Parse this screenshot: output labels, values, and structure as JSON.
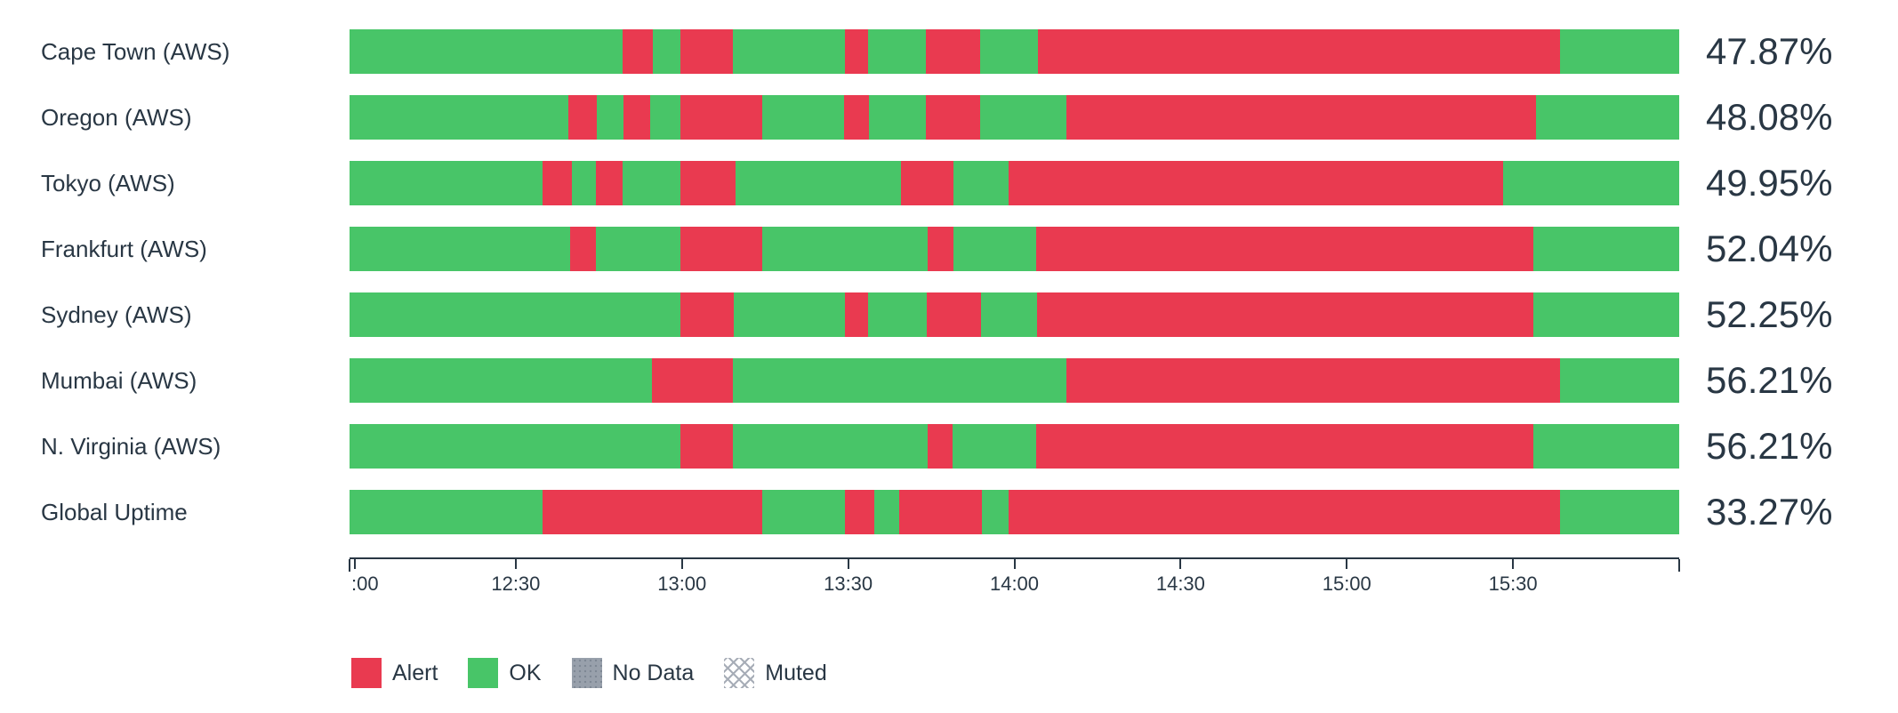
{
  "colors": {
    "alert": "#e93a50",
    "ok": "#48c568",
    "no_data": "#98a0ab",
    "no_data_dot": "#7e8894",
    "muted_line": "#a7adb7",
    "text": "#293744",
    "axis": "#293744"
  },
  "chart_data": {
    "type": "bar",
    "subtype": "status-timeline-uptime",
    "orientation": "horizontal",
    "time_range": {
      "start": "12:00",
      "end": "16:00"
    },
    "x_axis": {
      "ticks": [
        {
          "label": ":00",
          "pos_pct": 0
        },
        {
          "label": "12:30",
          "pos_pct": 12.5
        },
        {
          "label": "13:00",
          "pos_pct": 25
        },
        {
          "label": "13:30",
          "pos_pct": 37.5
        },
        {
          "label": "14:00",
          "pos_pct": 50
        },
        {
          "label": "14:30",
          "pos_pct": 62.5
        },
        {
          "label": "15:00",
          "pos_pct": 75
        },
        {
          "label": "15:30",
          "pos_pct": 87.5
        }
      ],
      "end_tick_pos_pct": 100
    },
    "rows": [
      {
        "label": "Cape Town (AWS)",
        "uptime": "47.87%",
        "segments": [
          {
            "status": "ok",
            "pct": 20.54
          },
          {
            "status": "alert",
            "pct": 2.29
          },
          {
            "status": "ok",
            "pct": 2.04
          },
          {
            "status": "alert",
            "pct": 3.96
          },
          {
            "status": "ok",
            "pct": 8.41
          },
          {
            "status": "alert",
            "pct": 1.73
          },
          {
            "status": "ok",
            "pct": 4.4
          },
          {
            "status": "alert",
            "pct": 4.08
          },
          {
            "status": "ok",
            "pct": 4.34
          },
          {
            "status": "alert",
            "pct": 39.28
          },
          {
            "status": "ok",
            "pct": 8.93
          }
        ]
      },
      {
        "label": "Oregon (AWS)",
        "uptime": "48.08%",
        "segments": [
          {
            "status": "ok",
            "pct": 16.45
          },
          {
            "status": "alert",
            "pct": 2.17
          },
          {
            "status": "ok",
            "pct": 1.98
          },
          {
            "status": "alert",
            "pct": 2.04
          },
          {
            "status": "ok",
            "pct": 2.23
          },
          {
            "status": "alert",
            "pct": 6.19
          },
          {
            "status": "ok",
            "pct": 6.12
          },
          {
            "status": "alert",
            "pct": 1.92
          },
          {
            "status": "ok",
            "pct": 4.27
          },
          {
            "status": "alert",
            "pct": 4.08
          },
          {
            "status": "ok",
            "pct": 6.44
          },
          {
            "status": "alert",
            "pct": 35.33
          },
          {
            "status": "ok",
            "pct": 10.78
          }
        ]
      },
      {
        "label": "Tokyo (AWS)",
        "uptime": "49.95%",
        "segments": [
          {
            "status": "ok",
            "pct": 14.54
          },
          {
            "status": "alert",
            "pct": 2.17
          },
          {
            "status": "ok",
            "pct": 1.79
          },
          {
            "status": "alert",
            "pct": 2.04
          },
          {
            "status": "ok",
            "pct": 4.33
          },
          {
            "status": "alert",
            "pct": 4.15
          },
          {
            "status": "ok",
            "pct": 12.43
          },
          {
            "status": "alert",
            "pct": 3.96
          },
          {
            "status": "ok",
            "pct": 4.14
          },
          {
            "status": "alert",
            "pct": 37.18
          },
          {
            "status": "ok",
            "pct": 13.27
          }
        ]
      },
      {
        "label": "Frankfurt (AWS)",
        "uptime": "52.04%",
        "segments": [
          {
            "status": "ok",
            "pct": 16.58
          },
          {
            "status": "alert",
            "pct": 1.98
          },
          {
            "status": "ok",
            "pct": 6.31
          },
          {
            "status": "alert",
            "pct": 6.19
          },
          {
            "status": "ok",
            "pct": 12.44
          },
          {
            "status": "alert",
            "pct": 1.91
          },
          {
            "status": "ok",
            "pct": 6.25
          },
          {
            "status": "alert",
            "pct": 37.37
          },
          {
            "status": "ok",
            "pct": 10.97
          }
        ]
      },
      {
        "label": "Sydney (AWS)",
        "uptime": "52.25%",
        "segments": [
          {
            "status": "ok",
            "pct": 24.87
          },
          {
            "status": "alert",
            "pct": 4.02
          },
          {
            "status": "ok",
            "pct": 8.35
          },
          {
            "status": "alert",
            "pct": 1.79
          },
          {
            "status": "ok",
            "pct": 4.4
          },
          {
            "status": "alert",
            "pct": 4.08
          },
          {
            "status": "ok",
            "pct": 4.21
          },
          {
            "status": "alert",
            "pct": 37.31
          },
          {
            "status": "ok",
            "pct": 10.97
          }
        ]
      },
      {
        "label": "Mumbai (AWS)",
        "uptime": "56.21%",
        "segments": [
          {
            "status": "ok",
            "pct": 22.77
          },
          {
            "status": "alert",
            "pct": 6.06
          },
          {
            "status": "ok",
            "pct": 25.06
          },
          {
            "status": "alert",
            "pct": 37.18
          },
          {
            "status": "ok",
            "pct": 8.93
          }
        ]
      },
      {
        "label": "N. Virginia (AWS)",
        "uptime": "56.21%",
        "segments": [
          {
            "status": "ok",
            "pct": 24.87
          },
          {
            "status": "alert",
            "pct": 3.96
          },
          {
            "status": "ok",
            "pct": 14.67
          },
          {
            "status": "alert",
            "pct": 1.84
          },
          {
            "status": "ok",
            "pct": 6.32
          },
          {
            "status": "alert",
            "pct": 37.37
          },
          {
            "status": "ok",
            "pct": 10.97
          }
        ]
      },
      {
        "label": "Global Uptime",
        "uptime": "33.27%",
        "segments": [
          {
            "status": "ok",
            "pct": 14.54
          },
          {
            "status": "alert",
            "pct": 16.52
          },
          {
            "status": "ok",
            "pct": 6.18
          },
          {
            "status": "alert",
            "pct": 2.24
          },
          {
            "status": "ok",
            "pct": 1.85
          },
          {
            "status": "alert",
            "pct": 6.25
          },
          {
            "status": "ok",
            "pct": 1.97
          },
          {
            "status": "alert",
            "pct": 41.52
          },
          {
            "status": "ok",
            "pct": 8.93
          }
        ]
      }
    ],
    "legend": [
      {
        "status": "alert",
        "label": "Alert"
      },
      {
        "status": "ok",
        "label": "OK"
      },
      {
        "status": "no_data",
        "label": "No Data"
      },
      {
        "status": "muted",
        "label": "Muted"
      }
    ],
    "layout": {
      "grid": false,
      "legend_position": "bottom-left"
    }
  }
}
